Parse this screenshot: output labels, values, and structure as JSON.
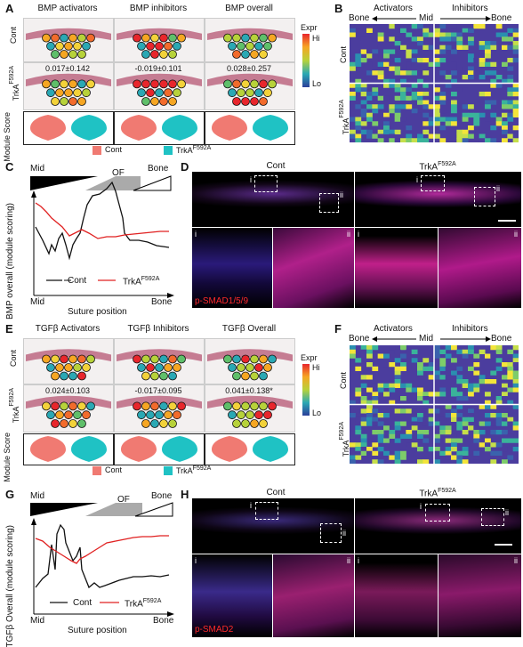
{
  "panels": {
    "A": {
      "label": "A",
      "columns": [
        "BMP activators",
        "BMP inhibitors",
        "BMP overall"
      ],
      "row_labels": [
        "Cont",
        "TrkA",
        "F592A"
      ],
      "stats": [
        "0.017±0.142",
        "-0.019±0.101",
        "0.028±0.257"
      ],
      "colorbar": {
        "title": "Expr",
        "hi": "Hi",
        "lo": "Lo"
      },
      "score_label": [
        "Module",
        "Score"
      ],
      "legend": [
        {
          "name": "Cont",
          "color": "#f07a72"
        },
        {
          "name": "TrkA",
          "sup": "F592A",
          "color": "#1fc2c4"
        }
      ]
    },
    "B": {
      "label": "B",
      "headers": [
        "Activators",
        "Inhibitors"
      ],
      "axis": {
        "left": "Bone",
        "mid": "Mid",
        "right": "Bone"
      },
      "row_labels": [
        "Cont",
        "TrkA",
        "F592A"
      ]
    },
    "C": {
      "label": "C",
      "top_labels": [
        "Mid",
        "OF",
        "Bone"
      ],
      "ylabel": [
        "BMP overall",
        "(module scoring)"
      ],
      "xlabel": "Suture position",
      "x_ticks": [
        "Mid",
        "Bone"
      ],
      "legend": [
        {
          "name": "Cont",
          "color": "#111111"
        },
        {
          "name": "TrkA",
          "sup": "F592A",
          "color": "#e02020"
        }
      ]
    },
    "D": {
      "label": "D",
      "titles": [
        "Cont",
        "TrkA",
        "F592A"
      ],
      "insets": [
        "i",
        "ii"
      ],
      "stain": "p-SMAD1/5/9"
    },
    "E": {
      "label": "E",
      "columns": [
        "TGFβ Activators",
        "TGFβ Inhibitors",
        "TGFβ Overall"
      ],
      "row_labels": [
        "Cont",
        "TrkA",
        "F592A"
      ],
      "stats": [
        "0.024±0.103",
        "-0.017±0.095",
        "0.041±0.138*"
      ],
      "colorbar": {
        "title": "Expr",
        "hi": "Hi",
        "lo": "Lo"
      },
      "score_label": [
        "Module",
        "Score"
      ],
      "legend": [
        {
          "name": "Cont",
          "color": "#f07a72"
        },
        {
          "name": "TrkA",
          "sup": "F592A",
          "color": "#1fc2c4"
        }
      ]
    },
    "F": {
      "label": "F",
      "headers": [
        "Activators",
        "Inhibitors"
      ],
      "axis": {
        "left": "Bone",
        "mid": "Mid",
        "right": "Bone"
      },
      "row_labels": [
        "Cont",
        "TrkA",
        "F592A"
      ]
    },
    "G": {
      "label": "G",
      "top_labels": [
        "Mid",
        "OF",
        "Bone"
      ],
      "ylabel": [
        "TGFβ Overall",
        "(module scoring)"
      ],
      "xlabel": "Suture position",
      "x_ticks": [
        "Mid",
        "Bone"
      ],
      "legend": [
        {
          "name": "Cont",
          "color": "#111111"
        },
        {
          "name": "TrkA",
          "sup": "F592A",
          "color": "#e02020"
        }
      ]
    },
    "H": {
      "label": "H",
      "titles": [
        "Cont",
        "TrkA",
        "F592A"
      ],
      "insets": [
        "i",
        "ii"
      ],
      "stain": "p-SMAD2"
    }
  }
}
